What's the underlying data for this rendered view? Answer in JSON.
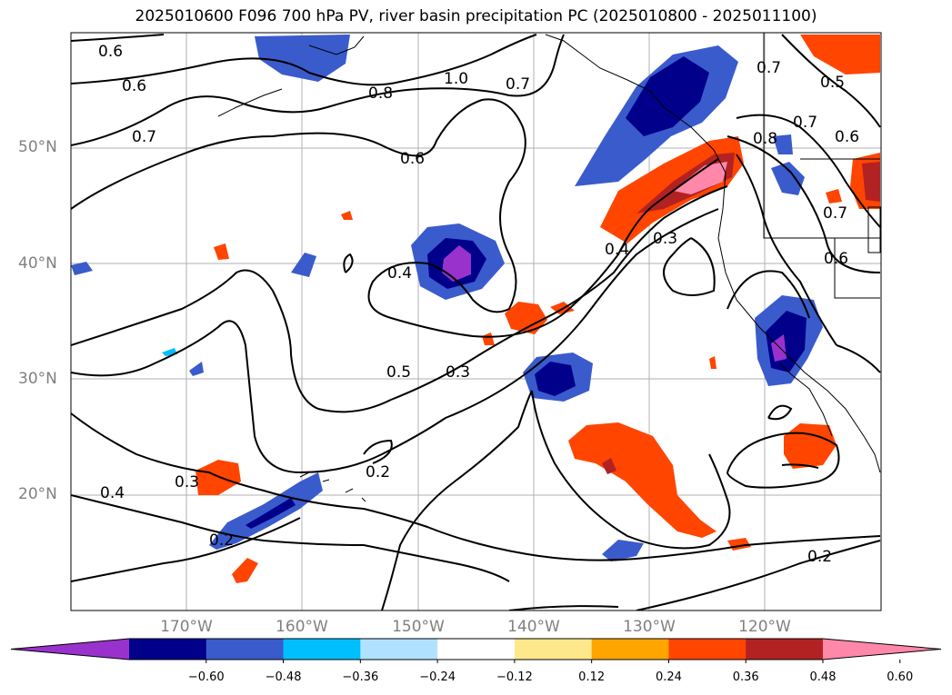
{
  "title": "2025010600 F096 700 hPa PV, river basin precipitation PC (2025010800 - 2025011100)",
  "latitude_labels": [
    "50°N",
    "40°N",
    "30°N",
    "20°N"
  ],
  "longitude_labels": [
    "170°W",
    "160°W",
    "150°W",
    "140°W",
    "130°W",
    "120°W"
  ],
  "contour_labels": [
    "0.6",
    "0.6",
    "0.7",
    "0.8",
    "1.0",
    "0.7",
    "0.6",
    "0.4",
    "0.5",
    "0.3",
    "0.4",
    "0.3",
    "0.2",
    "0.3",
    "0.4",
    "0.2",
    "0.2",
    "0.7",
    "0.5",
    "0.8",
    "0.7",
    "0.6",
    "0.7",
    "0.6"
  ],
  "colorbar": {
    "ticks": [
      "−0.60",
      "−0.48",
      "−0.36",
      "−0.24",
      "−0.12",
      "0.12",
      "0.24",
      "0.36",
      "0.48",
      "0.60"
    ],
    "colors": [
      "#9932cc",
      "#00008b",
      "#3a5bcc",
      "#00bfff",
      "#b0e2ff",
      "#ffffff",
      "#ffe88c",
      "#ffa500",
      "#ff4500",
      "#b22222",
      "#ff88aa"
    ]
  }
}
